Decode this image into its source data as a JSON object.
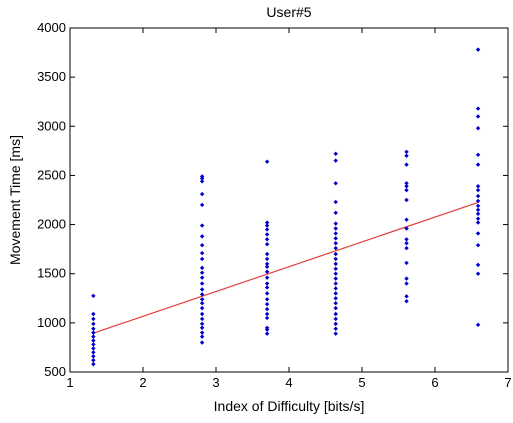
{
  "chart_data": {
    "type": "scatter",
    "title": "User#5",
    "xlabel": "Index of Difficulty [bits/s]",
    "ylabel": "Movement Time [ms]",
    "xlim": [
      1,
      7
    ],
    "ylim": [
      500,
      4000
    ],
    "xticks": [
      "1",
      "2",
      "3",
      "4",
      "5",
      "6",
      "7"
    ],
    "yticks": [
      "500",
      "1000",
      "1500",
      "2000",
      "2500",
      "3000",
      "3500",
      "4000"
    ],
    "grid": false,
    "colors": {
      "points": "#0000cc",
      "fit_line": "#e0403a",
      "axes": "#000000"
    },
    "series": [
      {
        "type": "scatter",
        "points": [
          [
            1.32,
            1275
          ],
          [
            1.32,
            1090
          ],
          [
            1.32,
            1040
          ],
          [
            1.32,
            990
          ],
          [
            1.32,
            940
          ],
          [
            1.32,
            900
          ],
          [
            1.32,
            860
          ],
          [
            1.32,
            820
          ],
          [
            1.32,
            780
          ],
          [
            1.32,
            740
          ],
          [
            1.32,
            700
          ],
          [
            1.32,
            660
          ],
          [
            1.32,
            620
          ],
          [
            1.32,
            580
          ],
          [
            2.81,
            2490
          ],
          [
            2.81,
            2470
          ],
          [
            2.81,
            2440
          ],
          [
            2.81,
            2310
          ],
          [
            2.81,
            2200
          ],
          [
            2.81,
            1990
          ],
          [
            2.81,
            1880
          ],
          [
            2.81,
            1790
          ],
          [
            2.81,
            1710
          ],
          [
            2.81,
            1650
          ],
          [
            2.81,
            1560
          ],
          [
            2.81,
            1510
          ],
          [
            2.81,
            1460
          ],
          [
            2.81,
            1400
          ],
          [
            2.81,
            1340
          ],
          [
            2.81,
            1290
          ],
          [
            2.81,
            1240
          ],
          [
            2.81,
            1200
          ],
          [
            2.81,
            1150
          ],
          [
            2.81,
            1090
          ],
          [
            2.81,
            1040
          ],
          [
            2.81,
            990
          ],
          [
            2.81,
            950
          ],
          [
            2.81,
            900
          ],
          [
            2.81,
            860
          ],
          [
            2.81,
            800
          ],
          [
            3.7,
            2640
          ],
          [
            3.7,
            2020
          ],
          [
            3.7,
            1990
          ],
          [
            3.7,
            1950
          ],
          [
            3.7,
            1900
          ],
          [
            3.7,
            1850
          ],
          [
            3.7,
            1800
          ],
          [
            3.7,
            1700
          ],
          [
            3.7,
            1650
          ],
          [
            3.7,
            1600
          ],
          [
            3.7,
            1570
          ],
          [
            3.7,
            1520
          ],
          [
            3.7,
            1460
          ],
          [
            3.7,
            1400
          ],
          [
            3.7,
            1360
          ],
          [
            3.7,
            1300
          ],
          [
            3.7,
            1240
          ],
          [
            3.7,
            1190
          ],
          [
            3.7,
            1140
          ],
          [
            3.7,
            1090
          ],
          [
            3.7,
            1050
          ],
          [
            3.7,
            950
          ],
          [
            3.7,
            930
          ],
          [
            3.7,
            890
          ],
          [
            4.64,
            2720
          ],
          [
            4.64,
            2650
          ],
          [
            4.64,
            2420
          ],
          [
            4.64,
            2230
          ],
          [
            4.64,
            2120
          ],
          [
            4.64,
            2010
          ],
          [
            4.64,
            1960
          ],
          [
            4.64,
            1910
          ],
          [
            4.64,
            1860
          ],
          [
            4.64,
            1810
          ],
          [
            4.64,
            1760
          ],
          [
            4.64,
            1700
          ],
          [
            4.64,
            1650
          ],
          [
            4.64,
            1600
          ],
          [
            4.64,
            1550
          ],
          [
            4.64,
            1500
          ],
          [
            4.64,
            1450
          ],
          [
            4.64,
            1400
          ],
          [
            4.64,
            1350
          ],
          [
            4.64,
            1300
          ],
          [
            4.64,
            1250
          ],
          [
            4.64,
            1200
          ],
          [
            4.64,
            1150
          ],
          [
            4.64,
            1090
          ],
          [
            4.64,
            1040
          ],
          [
            4.64,
            990
          ],
          [
            4.64,
            940
          ],
          [
            4.64,
            890
          ],
          [
            5.61,
            2740
          ],
          [
            5.61,
            2700
          ],
          [
            5.61,
            2610
          ],
          [
            5.61,
            2420
          ],
          [
            5.61,
            2390
          ],
          [
            5.61,
            2350
          ],
          [
            5.61,
            2250
          ],
          [
            5.61,
            2050
          ],
          [
            5.61,
            1960
          ],
          [
            5.61,
            1850
          ],
          [
            5.61,
            1810
          ],
          [
            5.61,
            1760
          ],
          [
            5.61,
            1610
          ],
          [
            5.61,
            1450
          ],
          [
            5.61,
            1400
          ],
          [
            5.61,
            1270
          ],
          [
            5.61,
            1220
          ],
          [
            6.59,
            3780
          ],
          [
            6.59,
            3180
          ],
          [
            6.59,
            3100
          ],
          [
            6.59,
            2980
          ],
          [
            6.59,
            2710
          ],
          [
            6.59,
            2610
          ],
          [
            6.59,
            2390
          ],
          [
            6.59,
            2350
          ],
          [
            6.59,
            2290
          ],
          [
            6.59,
            2240
          ],
          [
            6.59,
            2190
          ],
          [
            6.59,
            2150
          ],
          [
            6.59,
            2110
          ],
          [
            6.59,
            2060
          ],
          [
            6.59,
            2020
          ],
          [
            6.59,
            1910
          ],
          [
            6.59,
            1790
          ],
          [
            6.59,
            1590
          ],
          [
            6.59,
            1500
          ],
          [
            6.59,
            980
          ]
        ]
      },
      {
        "type": "line",
        "points": [
          [
            1.32,
            895
          ],
          [
            6.59,
            2225
          ]
        ]
      }
    ]
  }
}
